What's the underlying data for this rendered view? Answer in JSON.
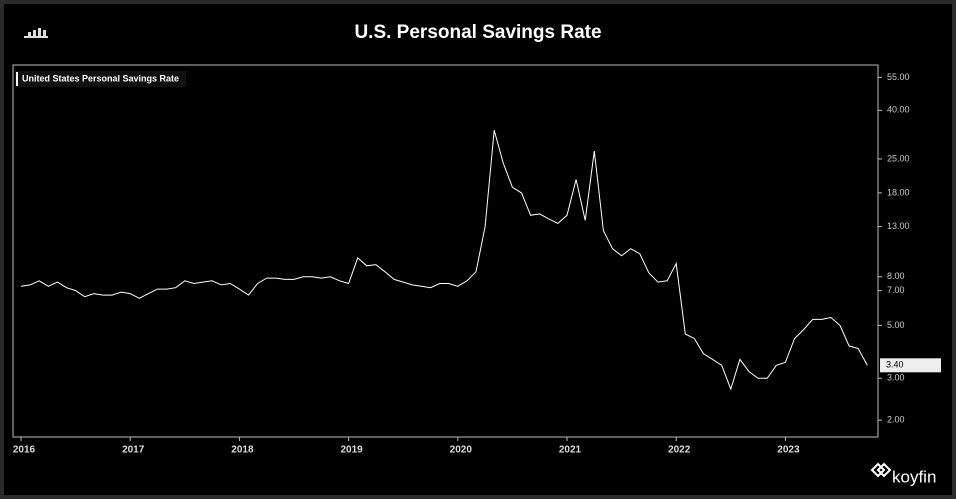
{
  "chart_data": {
    "type": "line",
    "title": "U.S. Personal Savings Rate",
    "brand": "koyfin",
    "categories": [
      "2016",
      null,
      null,
      null,
      null,
      null,
      null,
      null,
      null,
      null,
      null,
      null,
      "2017",
      null,
      null,
      null,
      null,
      null,
      null,
      null,
      null,
      null,
      null,
      null,
      "2018",
      null,
      null,
      null,
      null,
      null,
      null,
      null,
      null,
      null,
      null,
      null,
      "2019",
      null,
      null,
      null,
      null,
      null,
      null,
      null,
      null,
      null,
      null,
      null,
      "2020",
      null,
      null,
      null,
      null,
      null,
      null,
      null,
      null,
      null,
      null,
      null,
      "2021",
      null,
      null,
      null,
      null,
      null,
      null,
      null,
      null,
      null,
      null,
      null,
      "2022",
      null,
      null,
      null,
      null,
      null,
      null,
      null,
      null,
      null,
      null,
      null,
      "2023",
      null,
      null,
      null,
      null,
      null,
      null,
      null,
      null,
      null
    ],
    "series": [
      {
        "name": "United States Personal Savings Rate",
        "color": "#ffffff",
        "values": [
          7.3,
          7.4,
          7.7,
          7.3,
          7.6,
          7.2,
          7.0,
          6.6,
          6.8,
          6.7,
          6.7,
          6.9,
          6.8,
          6.5,
          6.8,
          7.1,
          7.1,
          7.2,
          7.7,
          7.5,
          7.6,
          7.7,
          7.4,
          7.5,
          7.1,
          6.7,
          7.5,
          7.9,
          7.9,
          7.8,
          7.8,
          8.0,
          8.0,
          7.9,
          8.0,
          7.7,
          7.5,
          9.6,
          8.9,
          9.0,
          8.4,
          7.8,
          7.6,
          7.4,
          7.3,
          7.2,
          7.5,
          7.5,
          7.3,
          7.7,
          8.4,
          13.0,
          33.0,
          24.0,
          19.0,
          18.0,
          14.5,
          14.7,
          14.0,
          13.4,
          14.5,
          20.5,
          13.8,
          27.0,
          12.5,
          10.5,
          9.8,
          10.5,
          10.0,
          8.3,
          7.6,
          7.7,
          9.1,
          4.6,
          4.4,
          3.8,
          3.6,
          3.4,
          2.7,
          3.6,
          3.2,
          3.0,
          3.0,
          3.4,
          3.5,
          4.4,
          4.8,
          5.3,
          5.3,
          5.4,
          5.0,
          4.1,
          4.0,
          3.4
        ],
        "value_labels": [
          null,
          null,
          null,
          null,
          null,
          null,
          null,
          null,
          null,
          null,
          null,
          null,
          null,
          null,
          null,
          null,
          null,
          null,
          null,
          null,
          null,
          null,
          null,
          null,
          null,
          null,
          null,
          null,
          null,
          null,
          null,
          null,
          null,
          null,
          null,
          null,
          null,
          null,
          null,
          null,
          null,
          null,
          null,
          null,
          null,
          null,
          null,
          null,
          null,
          null,
          null,
          null,
          null,
          null,
          null,
          null,
          null,
          null,
          null,
          null,
          null,
          null,
          null,
          null,
          null,
          null,
          null,
          null,
          null,
          null,
          null,
          null,
          null,
          null,
          null,
          null,
          null,
          null,
          null,
          null,
          null,
          null,
          null,
          null,
          null,
          null,
          null,
          null,
          null,
          null,
          null,
          null,
          null,
          "3.40"
        ]
      }
    ],
    "log_scale": true,
    "ylim": [
      1.7,
      62
    ],
    "yticks": [
      {
        "value": 2,
        "label": "2.00"
      },
      {
        "value": 3,
        "label": "3.00"
      },
      {
        "value": 5,
        "label": "5.00"
      },
      {
        "value": 7,
        "label": "7.00"
      },
      {
        "value": 8,
        "label": "8.00"
      },
      {
        "value": 13,
        "label": "13.00"
      },
      {
        "value": 18,
        "label": "18.00"
      },
      {
        "value": 25,
        "label": "25.00"
      },
      {
        "value": 40,
        "label": "40.00"
      },
      {
        "value": 55,
        "label": "55.00"
      }
    ],
    "legend": "upper left"
  }
}
